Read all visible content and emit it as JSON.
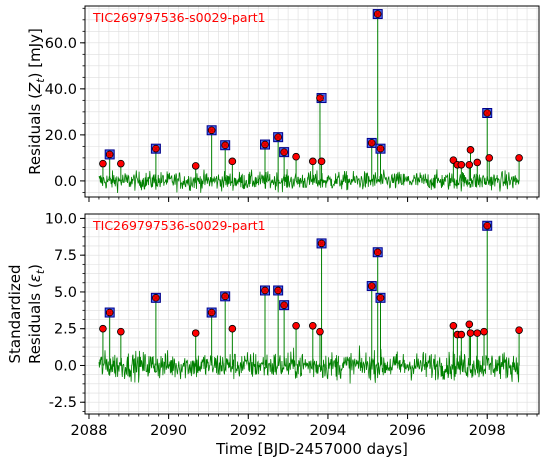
{
  "colors": {
    "noise": "#008000",
    "point_fill": "#ff0000",
    "point_edge": "#000000",
    "square_fill": "#4a6cf5",
    "square_edge": "#00008b",
    "x_mark": "#cc0000",
    "title": "#ff0000",
    "grid": "#dddddd"
  },
  "chart_data": [
    {
      "type": "scatter",
      "title": "TIC269797536-s0029-part1",
      "xlabel": "",
      "ylabel": "Residuals (Z_t) [mJy]",
      "ylabel_parts": {
        "prefix": "Residuals (",
        "var": "Z",
        "sub": "t",
        "suffix": ") [mJy]"
      },
      "xlim": [
        2087.9,
        2099.3
      ],
      "ylim": [
        -7,
        76
      ],
      "yticks": [
        0,
        20,
        40,
        60
      ],
      "ytick_labels": [
        "0.0",
        "20.0",
        "40.0",
        "60.0"
      ],
      "grid": true,
      "noise_band": {
        "x_range": [
          2088.25,
          2098.8
        ],
        "center": 0,
        "amplitude": 6
      },
      "points": {
        "x": [
          2088.35,
          2088.52,
          2088.8,
          2089.68,
          2090.68,
          2091.08,
          2091.42,
          2091.6,
          2092.42,
          2092.75,
          2092.9,
          2093.2,
          2093.62,
          2093.8,
          2093.84,
          2095.1,
          2095.25,
          2095.32,
          2097.15,
          2097.25,
          2097.35,
          2097.55,
          2097.58,
          2097.75,
          2098.0,
          2098.05,
          2098.8
        ],
        "y": [
          7.5,
          11.5,
          7.5,
          14.0,
          6.5,
          22.0,
          15.5,
          8.5,
          15.8,
          19.0,
          12.5,
          10.5,
          8.5,
          36.0,
          8.5,
          16.5,
          72.5,
          14.0,
          9.0,
          7.0,
          7.0,
          7.0,
          13.5,
          8.0,
          29.5,
          10.0,
          10.0
        ]
      },
      "flagged": {
        "x": [
          2088.52,
          2089.68,
          2091.08,
          2091.42,
          2092.42,
          2092.75,
          2092.9,
          2093.84,
          2095.1,
          2095.25,
          2095.32,
          2098.0
        ],
        "y": [
          11.5,
          14.0,
          22.0,
          15.5,
          15.8,
          19.0,
          12.5,
          36.0,
          16.5,
          72.5,
          14.0,
          29.5
        ]
      }
    },
    {
      "type": "scatter",
      "title": "TIC269797536-s0029-part1",
      "xlabel": "Time [BJD-2457000 days]",
      "ylabel": "Standardized Residuals (ε_t)",
      "ylabel_line1": "Standardized",
      "ylabel_parts": {
        "prefix": "Residuals (",
        "var": "ε",
        "sub": "t",
        "suffix": ")"
      },
      "xlim": [
        2087.9,
        2099.3
      ],
      "ylim": [
        -3.3,
        10.3
      ],
      "xticks": [
        2088,
        2090,
        2092,
        2094,
        2096,
        2098
      ],
      "xtick_labels": [
        "2088",
        "2090",
        "2092",
        "2094",
        "2096",
        "2098"
      ],
      "yticks": [
        -2.5,
        0,
        2.5,
        5,
        7.5,
        10
      ],
      "ytick_labels": [
        "-2.5",
        "0.0",
        "2.5",
        "5.0",
        "7.5",
        "10.0"
      ],
      "grid": true,
      "noise_band": {
        "x_range": [
          2088.25,
          2098.8
        ],
        "center": 0,
        "amplitude": 1.4
      },
      "points": {
        "x": [
          2088.35,
          2088.52,
          2088.8,
          2089.68,
          2090.68,
          2091.08,
          2091.42,
          2091.6,
          2092.42,
          2092.75,
          2092.9,
          2093.2,
          2093.62,
          2093.8,
          2093.84,
          2095.1,
          2095.25,
          2095.32,
          2097.15,
          2097.25,
          2097.35,
          2097.55,
          2097.58,
          2097.75,
          2097.92,
          2098.0,
          2098.8
        ],
        "y": [
          2.5,
          3.6,
          2.3,
          4.6,
          2.2,
          3.6,
          4.7,
          2.5,
          5.1,
          5.1,
          4.1,
          2.7,
          2.7,
          2.3,
          8.3,
          5.4,
          7.7,
          4.6,
          2.7,
          2.1,
          2.1,
          2.8,
          2.2,
          2.2,
          2.3,
          9.5,
          2.4
        ]
      },
      "flagged": {
        "x": [
          2088.52,
          2089.68,
          2091.08,
          2091.42,
          2092.42,
          2092.75,
          2092.9,
          2093.84,
          2095.1,
          2095.25,
          2095.32,
          2098.0
        ],
        "y": [
          3.6,
          4.6,
          3.6,
          4.7,
          5.1,
          5.1,
          4.1,
          8.3,
          5.4,
          7.7,
          4.6,
          9.5
        ]
      }
    }
  ]
}
